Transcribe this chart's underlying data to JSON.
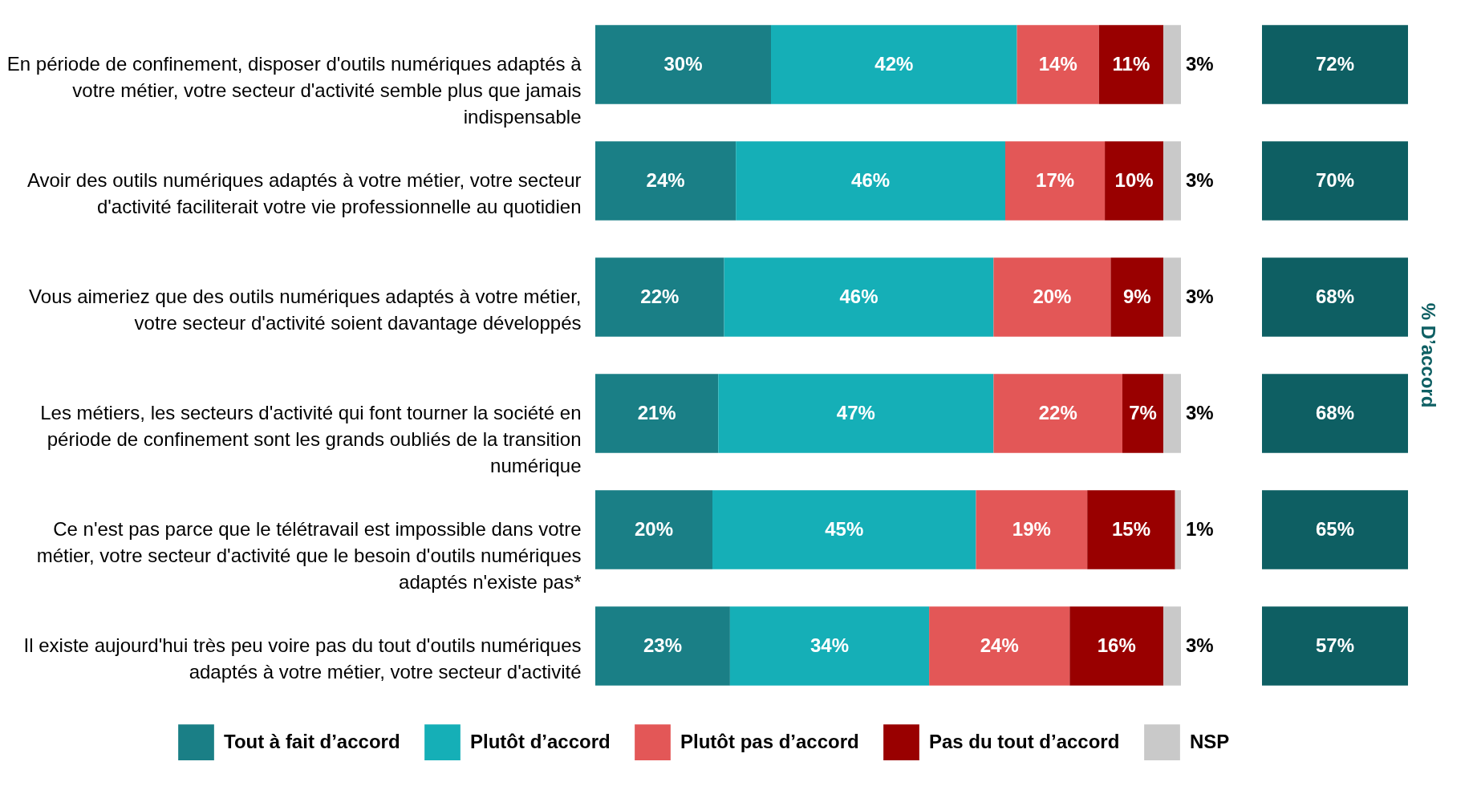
{
  "chart_data": [
    {
      "type": "bar",
      "orientation": "horizontal",
      "stacked": true,
      "legend": "bottom",
      "tick_labels": "y",
      "categories": [
        "En période de confinement, disposer d'outils numériques adaptés à votre métier, votre secteur d'activité semble plus que jamais indispensable",
        "Avoir des outils numériques adaptés à votre métier, votre secteur d'activité faciliterait votre vie professionnelle au quotidien",
        "Vous aimeriez que des outils numériques adaptés à votre métier, votre secteur d'activité soient davantage développés",
        "Les métiers, les secteurs d'activité qui font tourner la société en période de confinement sont les grands oubliés de la transition numérique",
        "Ce n'est pas parce que le télétravail est impossible dans votre métier, votre secteur d'activité que le besoin d'outils numériques adaptés n'existe pas*",
        "Il existe aujourd'hui très peu voire pas du tout d'outils numériques adaptés à votre métier, votre secteur d'activité"
      ],
      "series": [
        {
          "name": "Tout à fait d’accord",
          "color": "#1a7f86",
          "values": [
            30,
            24,
            22,
            21,
            20,
            23
          ],
          "value_labels": [
            "30%",
            "24%",
            "22%",
            "21%",
            "20%",
            "23%"
          ]
        },
        {
          "name": "Plutôt d’accord",
          "color": "#15afb7",
          "values": [
            42,
            46,
            46,
            47,
            45,
            34
          ],
          "value_labels": [
            "42%",
            "46%",
            "46%",
            "47%",
            "45%",
            "34%"
          ]
        },
        {
          "name": "Plutôt pas d’accord",
          "color": "#e35757",
          "values": [
            14,
            17,
            20,
            22,
            19,
            24
          ],
          "value_labels": [
            "14%",
            "17%",
            "20%",
            "22%",
            "19%",
            "24%"
          ]
        },
        {
          "name": "Pas du tout d’accord",
          "color": "#990000",
          "values": [
            11,
            10,
            9,
            7,
            15,
            16
          ],
          "value_labels": [
            "11%",
            "10%",
            "9%",
            "7%",
            "15%",
            "16%"
          ]
        },
        {
          "name": "NSP",
          "color": "#c9c9c9",
          "values": [
            3,
            3,
            3,
            3,
            1,
            3
          ],
          "value_labels": [
            "3%",
            "3%",
            "3%",
            "3%",
            "1%",
            "3%"
          ]
        }
      ]
    },
    {
      "type": "other",
      "title": "% D’accord",
      "annotations": [
        "72%",
        "70%",
        "68%",
        "68%",
        "65%",
        "57%"
      ]
    }
  ]
}
